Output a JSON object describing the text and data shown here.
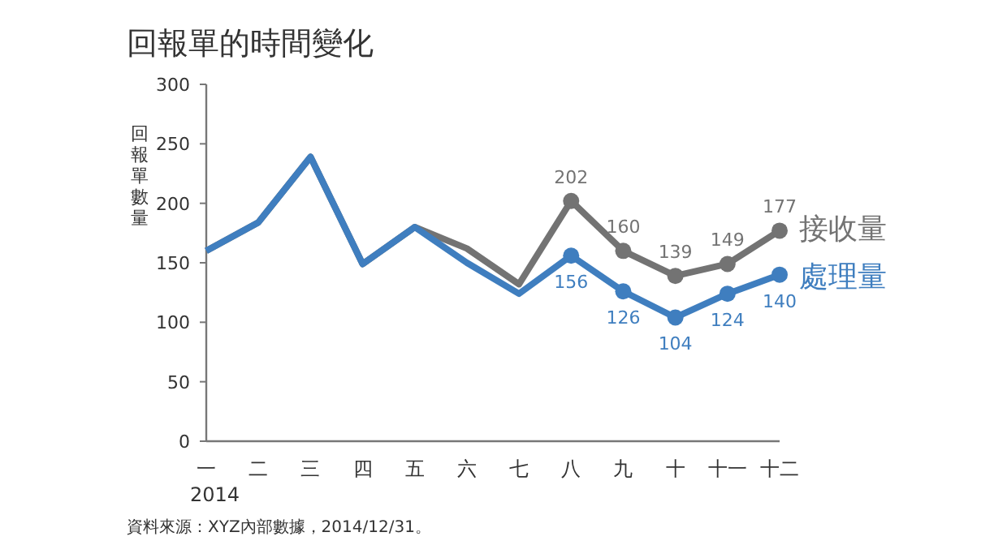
{
  "chart_data": {
    "type": "line",
    "title": "回報單的時間變化",
    "ylabel": "回報單數量",
    "categories": [
      "一",
      "二",
      "三",
      "四",
      "五",
      "六",
      "七",
      "八",
      "九",
      "十",
      "十一",
      "十二"
    ],
    "series": [
      {
        "name": "接收量",
        "color": "#737373",
        "values": [
          160,
          184,
          239,
          149,
          180,
          162,
          132,
          202,
          160,
          139,
          149,
          177
        ],
        "value_labels": [
          null,
          null,
          null,
          null,
          null,
          null,
          null,
          "202",
          "160",
          "139",
          "149",
          "177"
        ]
      },
      {
        "name": "處理量",
        "color": "#3f7ebf",
        "values": [
          160,
          184,
          239,
          149,
          180,
          150,
          124,
          156,
          126,
          104,
          124,
          140
        ],
        "value_labels": [
          null,
          null,
          null,
          null,
          null,
          null,
          null,
          "156",
          "126",
          "104",
          "124",
          "140"
        ]
      }
    ],
    "ylim": [
      0,
      300
    ],
    "yticks": [
      0,
      50,
      100,
      150,
      200,
      250,
      300
    ],
    "grid": false,
    "legend": false,
    "annotations": [
      "2014",
      "資料來源：XYZ內部數據，2014/12/31。"
    ]
  }
}
